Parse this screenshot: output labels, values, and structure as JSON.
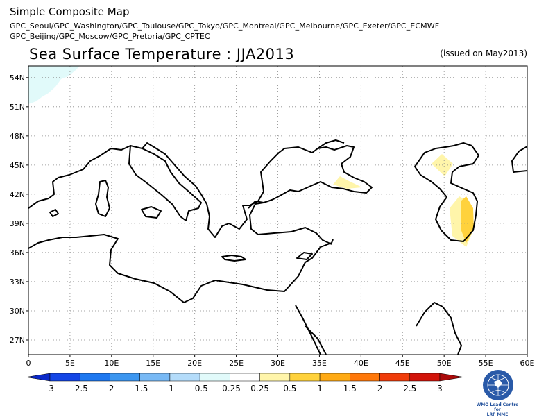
{
  "header": {
    "title": "Simple Composite Map",
    "centers_line1": "GPC_Seoul/GPC_Washington/GPC_Toulouse/GPC_Tokyo/GPC_Montreal/GPC_Melbourne/GPC_Exeter/GPC_ECMWF",
    "centers_line2": "GPC_Beijing/GPC_Moscow/GPC_Pretoria/GPC_CPTEC"
  },
  "map": {
    "title": "Sea Surface Temperature : JJA2013",
    "issued": "(issued on May2013)",
    "lon_ticks": [
      "0",
      "5E",
      "10E",
      "15E",
      "20E",
      "25E",
      "30E",
      "35E",
      "40E",
      "45E",
      "50E",
      "55E",
      "60E"
    ],
    "lat_ticks": [
      "54N",
      "51N",
      "48N",
      "45N",
      "42N",
      "39N",
      "36N",
      "33N",
      "30N",
      "27N"
    ],
    "lon_range": [
      0,
      60
    ],
    "lat_range": [
      25.5,
      55.2
    ],
    "grid": "dotted"
  },
  "colorbar": {
    "labels": [
      "-3",
      "-2.5",
      "-2",
      "-1.5",
      "-1",
      "-0.5",
      "-0.25",
      "0.25",
      "0.5",
      "1",
      "1.5",
      "2",
      "2.5",
      "3"
    ],
    "colors": [
      "#0a28c8",
      "#1446e6",
      "#1e78f0",
      "#3c96f0",
      "#78b9f5",
      "#b4dcfa",
      "#e1fafa",
      "#ffffff",
      "#fff5aa",
      "#ffd23c",
      "#ffaa14",
      "#ff780a",
      "#f03c0a",
      "#d2140a",
      "#aa0a0a"
    ]
  },
  "logo": {
    "caption_line1": "WMO Lead Centre for",
    "caption_line2": "LRF MME"
  }
}
